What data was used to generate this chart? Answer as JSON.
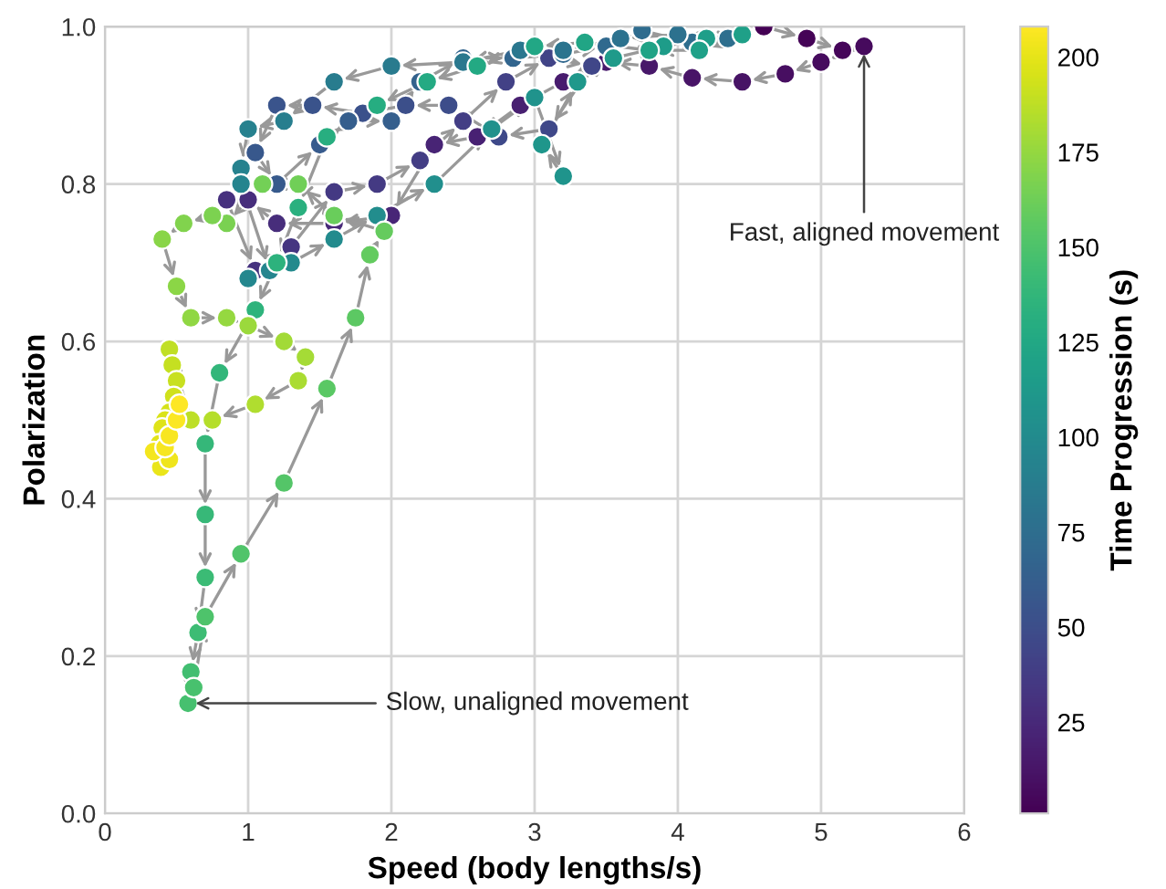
{
  "chart_data": {
    "type": "scatter",
    "xlabel": "Speed (body lengths/s)",
    "ylabel": "Polarization",
    "clabel": "Time Progression (s)",
    "xlim": [
      0,
      6
    ],
    "xticks": [
      0,
      1,
      2,
      3,
      4,
      5,
      6
    ],
    "ylim": [
      0.0,
      1.0
    ],
    "yticks": [
      {
        "value": 0,
        "label": "0.0"
      },
      0.2,
      0.4,
      0.6,
      0.8,
      {
        "value": 1,
        "label": "1.0"
      }
    ],
    "clim": [
      1,
      208
    ],
    "cticks": [
      25,
      50,
      75,
      100,
      125,
      150,
      175,
      200
    ],
    "grid": true,
    "marker": "circle",
    "line_style": "solid",
    "x": [
      4.6,
      4.9,
      5.15,
      5.3,
      5.0,
      4.75,
      4.45,
      4.1,
      3.8,
      3.5,
      3.2,
      2.9,
      2.6,
      2.3,
      2.0,
      1.6,
      1.2,
      1.0,
      0.85,
      1.05,
      1.3,
      1.6,
      1.9,
      2.2,
      2.5,
      2.8,
      3.1,
      3.4,
      3.1,
      2.75,
      2.4,
      2.1,
      1.8,
      1.45,
      1.2,
      1.05,
      1.2,
      1.5,
      1.7,
      2.0,
      2.2,
      2.5,
      2.85,
      3.2,
      3.5,
      3.75,
      4.1,
      4.35,
      4.0,
      3.6,
      3.2,
      2.9,
      2.5,
      2.0,
      1.6,
      1.25,
      1.0,
      0.95,
      0.95,
      1.15,
      1.0,
      1.3,
      1.6,
      1.9,
      2.3,
      2.7,
      3.0,
      3.2,
      3.05,
      3.3,
      3.55,
      3.9,
      4.2,
      4.45,
      4.15,
      3.8,
      3.35,
      3.0,
      2.6,
      2.25,
      1.9,
      1.55,
      1.35,
      1.2,
      1.05,
      0.8,
      0.7,
      0.7,
      0.7,
      0.65,
      0.6,
      0.58,
      0.62,
      0.7,
      0.95,
      1.25,
      1.55,
      1.75,
      1.85,
      1.95,
      1.6,
      1.35,
      1.1,
      0.85,
      0.75,
      0.55,
      0.4,
      0.5,
      0.6,
      0.85,
      1.0,
      1.25,
      1.4,
      1.35,
      1.05,
      0.75,
      0.6,
      0.45,
      0.47,
      0.5,
      0.48,
      0.45,
      0.42,
      0.4,
      0.38,
      0.39,
      0.45,
      0.34,
      0.42,
      0.45,
      0.5,
      0.52
    ],
    "values": [
      1.0,
      0.985,
      0.97,
      0.975,
      0.955,
      0.94,
      0.93,
      0.935,
      0.95,
      0.955,
      0.93,
      0.9,
      0.86,
      0.85,
      0.76,
      0.75,
      0.75,
      0.78,
      0.78,
      0.69,
      0.72,
      0.79,
      0.8,
      0.83,
      0.88,
      0.93,
      0.96,
      0.95,
      0.87,
      0.86,
      0.9,
      0.9,
      0.89,
      0.9,
      0.9,
      0.84,
      0.8,
      0.85,
      0.88,
      0.88,
      0.93,
      0.96,
      0.96,
      0.965,
      0.975,
      0.995,
      0.98,
      0.985,
      0.99,
      0.985,
      0.97,
      0.97,
      0.955,
      0.95,
      0.93,
      0.88,
      0.87,
      0.82,
      0.8,
      0.69,
      0.68,
      0.7,
      0.73,
      0.76,
      0.8,
      0.87,
      0.91,
      0.81,
      0.85,
      0.93,
      0.96,
      0.975,
      0.985,
      0.99,
      0.97,
      0.97,
      0.98,
      0.975,
      0.95,
      0.93,
      0.9,
      0.86,
      0.77,
      0.7,
      0.64,
      0.56,
      0.47,
      0.38,
      0.3,
      0.23,
      0.18,
      0.14,
      0.16,
      0.25,
      0.33,
      0.42,
      0.54,
      0.63,
      0.71,
      0.74,
      0.76,
      0.8,
      0.8,
      0.75,
      0.76,
      0.75,
      0.73,
      0.67,
      0.63,
      0.63,
      0.62,
      0.6,
      0.58,
      0.55,
      0.52,
      0.5,
      0.5,
      0.59,
      0.57,
      0.55,
      0.53,
      0.51,
      0.5,
      0.49,
      0.47,
      0.44,
      0.45,
      0.46,
      0.465,
      0.48,
      0.5,
      0.52
    ],
    "cvalues": [
      1,
      3,
      4,
      6,
      7,
      9,
      11,
      12,
      14,
      15,
      17,
      19,
      20,
      22,
      23,
      25,
      27,
      28,
      30,
      31,
      33,
      35,
      36,
      38,
      39,
      41,
      43,
      44,
      46,
      47,
      49,
      51,
      52,
      54,
      55,
      57,
      59,
      60,
      62,
      63,
      65,
      67,
      68,
      70,
      71,
      73,
      75,
      76,
      78,
      79,
      81,
      83,
      84,
      86,
      87,
      89,
      91,
      92,
      94,
      95,
      97,
      99,
      100,
      102,
      103,
      105,
      107,
      108,
      110,
      111,
      113,
      115,
      116,
      118,
      119,
      121,
      123,
      124,
      126,
      127,
      129,
      131,
      132,
      134,
      135,
      137,
      139,
      140,
      142,
      143,
      145,
      147,
      148,
      150,
      151,
      153,
      155,
      156,
      158,
      159,
      161,
      163,
      164,
      166,
      167,
      169,
      171,
      172,
      174,
      175,
      177,
      179,
      180,
      182,
      183,
      185,
      187,
      188,
      190,
      191,
      193,
      195,
      196,
      198,
      199,
      201,
      203,
      204,
      205,
      206,
      207,
      208
    ],
    "annotations": [
      {
        "text": "Fast, aligned movement",
        "x": 5.3,
        "y": 0.975
      },
      {
        "text": "Slow, unaligned movement",
        "x": 0.58,
        "y": 0.14
      }
    ]
  }
}
